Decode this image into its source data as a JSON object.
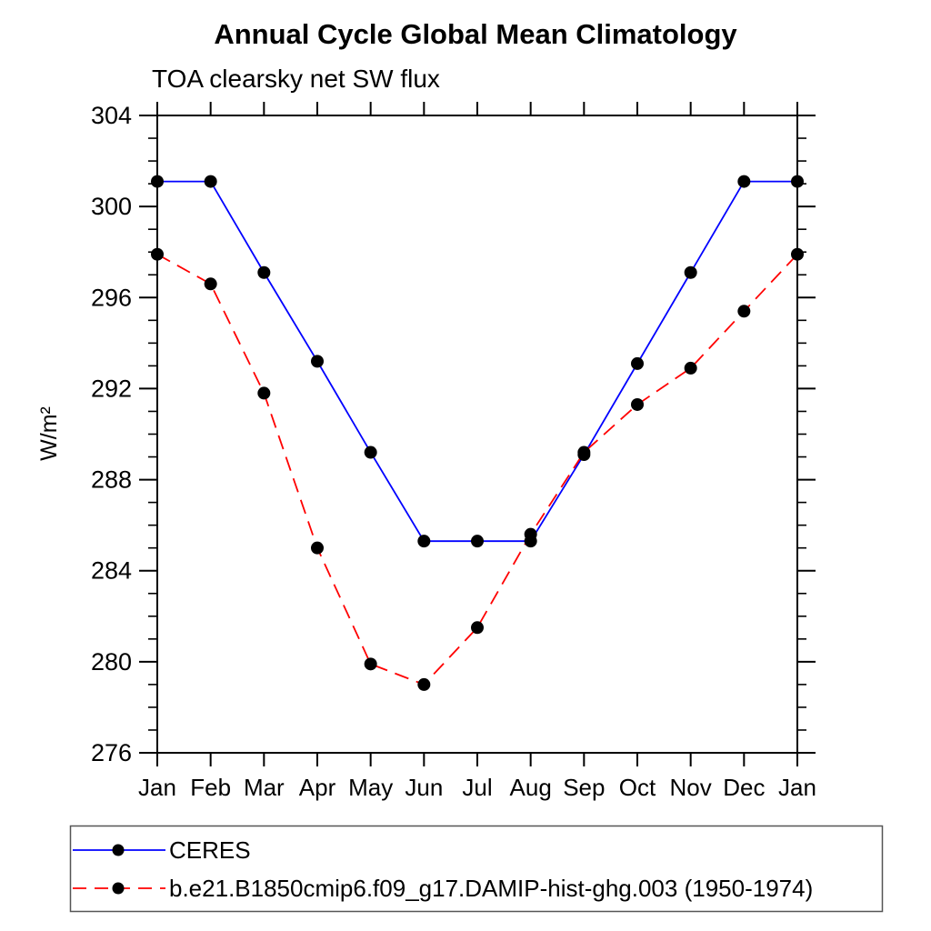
{
  "chart_data": {
    "type": "line",
    "title": "Annual Cycle Global Mean Climatology",
    "subtitle": "TOA clearsky net SW flux",
    "ylabel": "W/m²",
    "xlabel": "",
    "x_tick_labels": [
      "Jan",
      "Feb",
      "Mar",
      "Apr",
      "May",
      "Jun",
      "Jul",
      "Aug",
      "Sep",
      "Oct",
      "Nov",
      "Dec",
      "Jan"
    ],
    "ylim": [
      276,
      304
    ],
    "ytick_major_step": 4,
    "ytick_minor_step": 1,
    "grid": false,
    "legend_position": "bottom",
    "frame_color": "#000000",
    "marker": {
      "shape": "circle",
      "color": "#000000"
    },
    "series": [
      {
        "name": "CERES",
        "color": "#0000ff",
        "line_style": "solid",
        "values": [
          301.1,
          301.1,
          297.1,
          293.2,
          289.2,
          285.3,
          285.3,
          285.3,
          289.1,
          293.1,
          297.1,
          301.1,
          301.1
        ]
      },
      {
        "name": "b.e21.B1850cmip6.f09_g17.DAMIP-hist-ghg.003 (1950-1974)",
        "color": "#ff0000",
        "line_style": "dashed",
        "values": [
          297.9,
          296.6,
          291.8,
          285.0,
          279.9,
          279.0,
          281.5,
          285.6,
          289.2,
          291.3,
          292.9,
          295.4,
          297.9
        ]
      }
    ]
  }
}
